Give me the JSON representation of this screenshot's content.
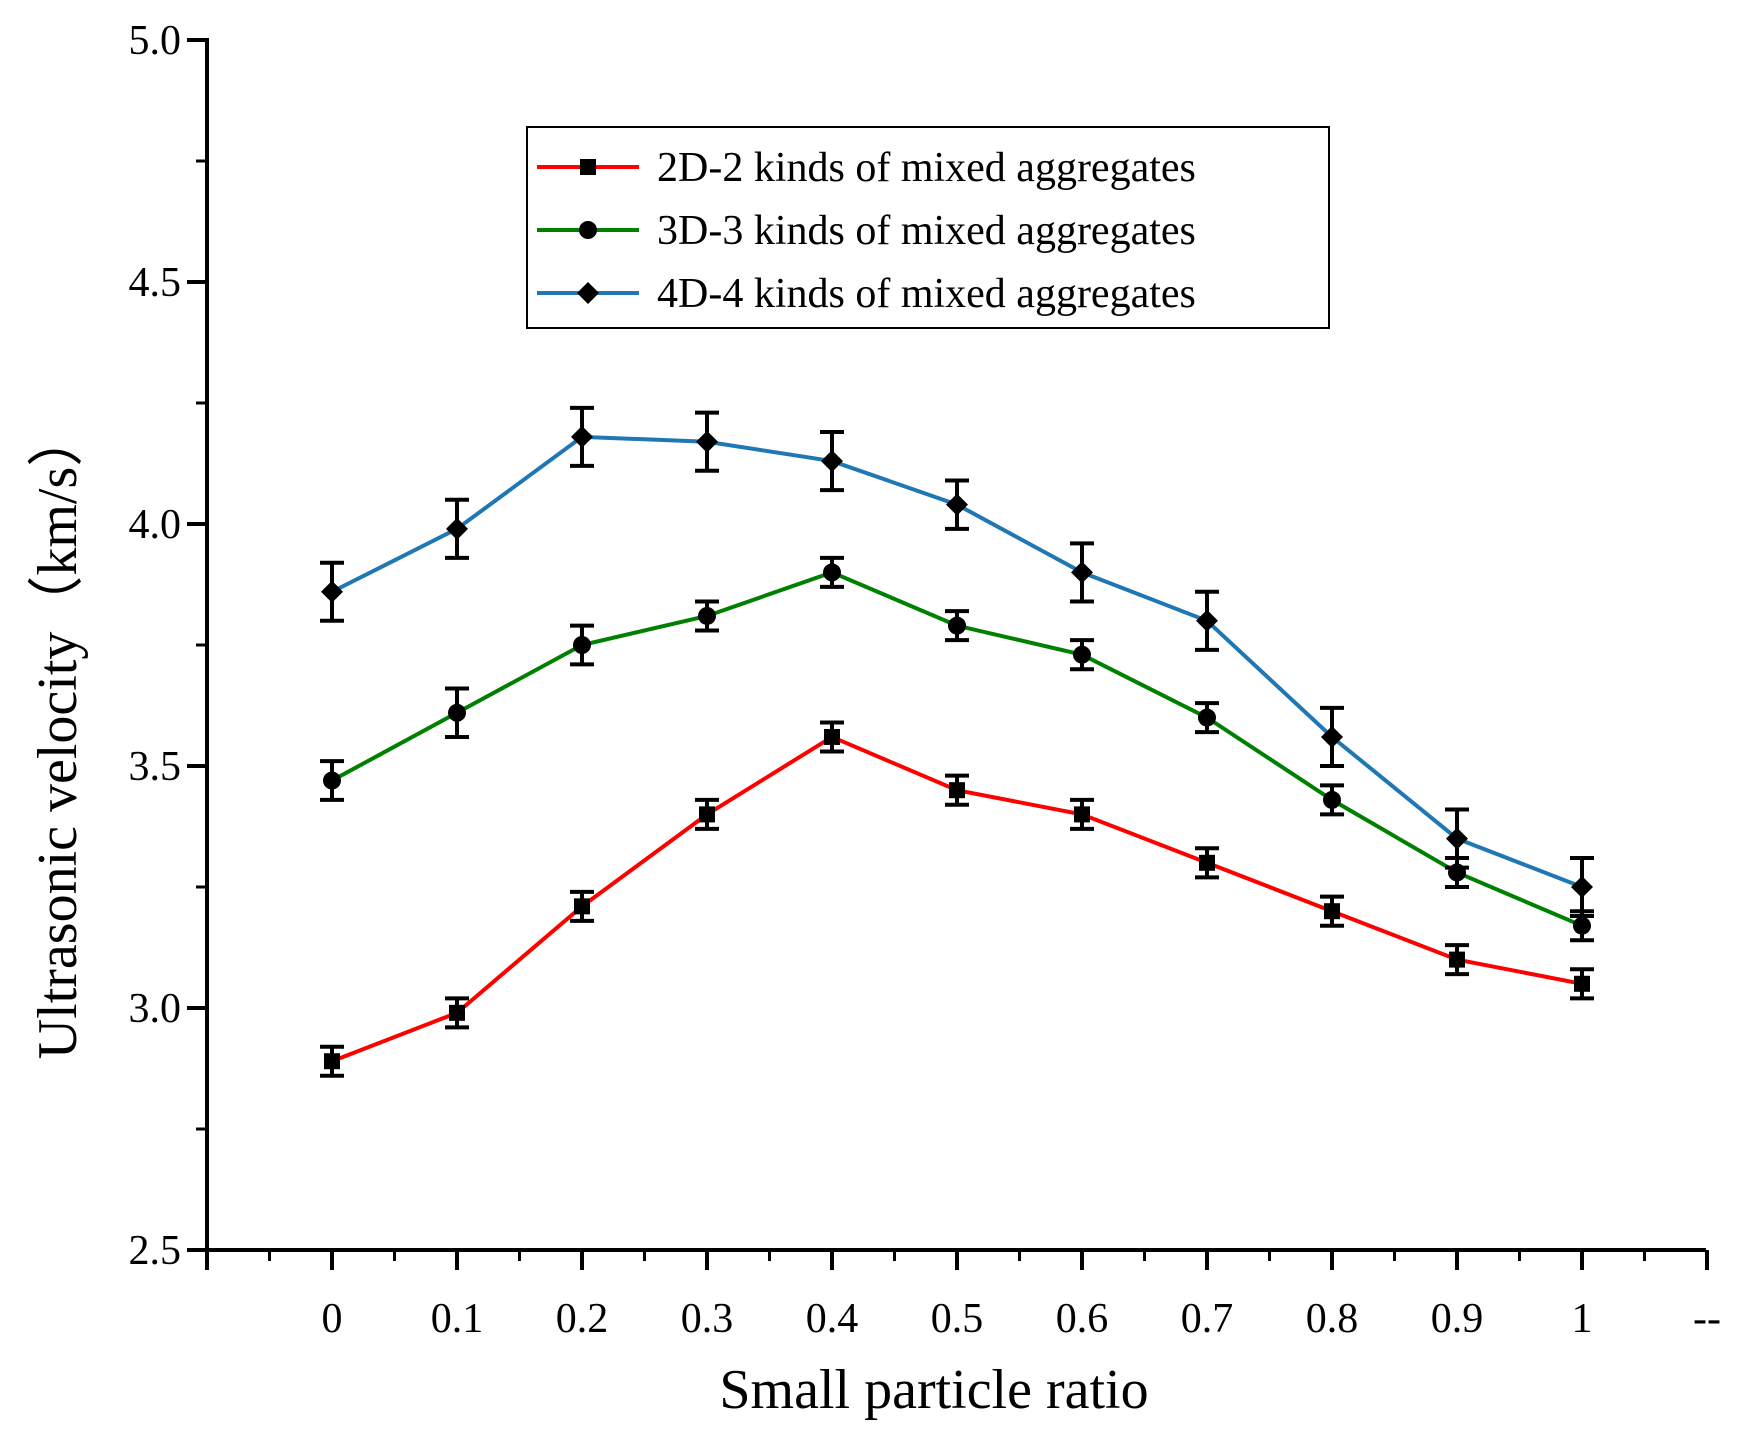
{
  "chart_data": {
    "type": "line",
    "title": "",
    "xlabel": "Small particle ratio",
    "ylabel": "Ultrasonic velocity（km/s）",
    "x_tick_labels": [
      "0",
      "0.1",
      "0.2",
      "0.3",
      "0.4",
      "0.5",
      "0.6",
      "0.7",
      "0.8",
      "0.9",
      "1",
      "--"
    ],
    "y_tick_labels": [
      "2.5",
      "3.0",
      "3.5",
      "4.0",
      "4.5",
      "5.0"
    ],
    "ylim": [
      2.5,
      5.0
    ],
    "grid": false,
    "legend_position": "top-center",
    "x": [
      0,
      0.1,
      0.2,
      0.3,
      0.4,
      0.5,
      0.6,
      0.7,
      0.8,
      0.9,
      1
    ],
    "series": [
      {
        "name": "2D-2 kinds of mixed aggregates",
        "color": "#ff0000",
        "marker": "square",
        "values": [
          2.89,
          2.99,
          3.21,
          3.4,
          3.56,
          3.45,
          3.4,
          3.3,
          3.2,
          3.1,
          3.05
        ],
        "errors": [
          0.03,
          0.03,
          0.03,
          0.03,
          0.03,
          0.03,
          0.03,
          0.03,
          0.03,
          0.03,
          0.03
        ]
      },
      {
        "name": "3D-3 kinds of mixed aggregates",
        "color": "#008000",
        "marker": "circle",
        "values": [
          3.47,
          3.61,
          3.75,
          3.81,
          3.9,
          3.79,
          3.73,
          3.6,
          3.43,
          3.28,
          3.17
        ],
        "errors": [
          0.04,
          0.05,
          0.04,
          0.03,
          0.03,
          0.03,
          0.03,
          0.03,
          0.03,
          0.03,
          0.03
        ]
      },
      {
        "name": "4D-4 kinds of mixed aggregates",
        "color": "#1f77b4",
        "marker": "diamond",
        "values": [
          3.86,
          3.99,
          4.18,
          4.17,
          4.13,
          4.04,
          3.9,
          3.8,
          3.56,
          3.35,
          3.25
        ],
        "errors": [
          0.06,
          0.06,
          0.06,
          0.06,
          0.06,
          0.05,
          0.06,
          0.06,
          0.06,
          0.06,
          0.06
        ]
      }
    ]
  }
}
